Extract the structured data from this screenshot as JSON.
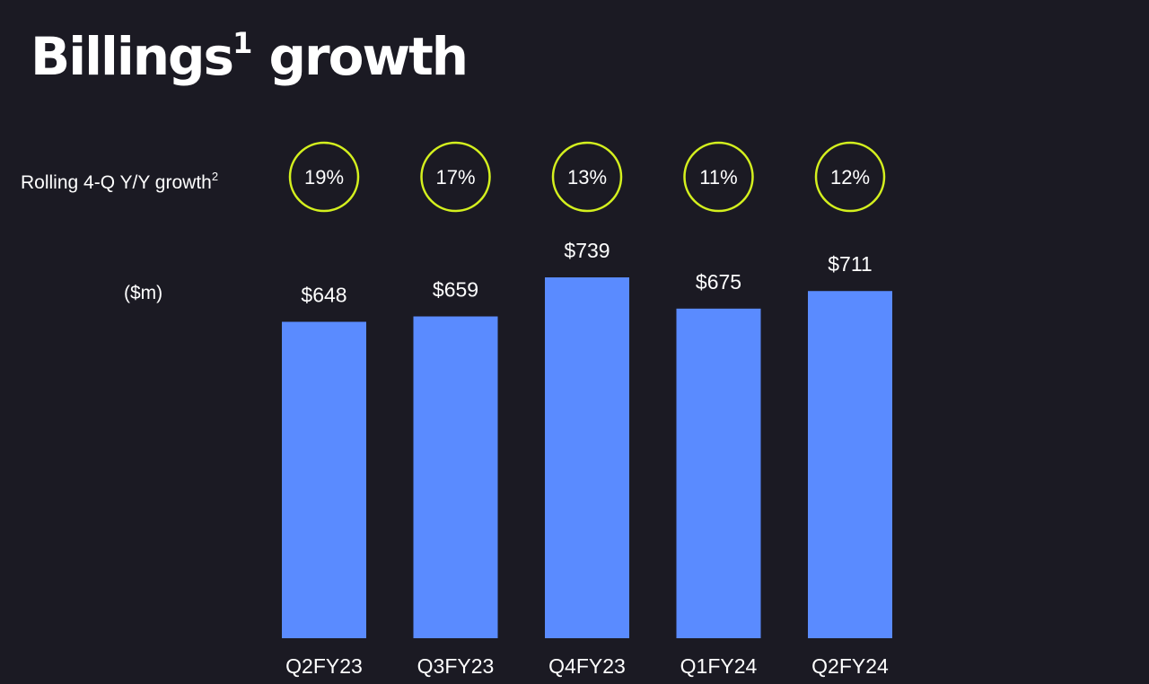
{
  "slide": {
    "title": "Billings",
    "title_superscript": "1",
    "title_rest": " growth",
    "growth_row_label": "Rolling 4-Q Y/Y growth",
    "growth_row_superscript": "2",
    "unit_label": "($m)"
  },
  "colors": {
    "background": "#1b1a23",
    "bar": "#5a8bff",
    "circle": "#d4f01e",
    "text": "#ffffff"
  },
  "chart_data": {
    "type": "bar",
    "title": "Billings1 growth",
    "xlabel": "",
    "ylabel": "($m)",
    "categories": [
      "Q2FY23",
      "Q3FY23",
      "Q4FY23",
      "Q1FY24",
      "Q2FY24"
    ],
    "values": [
      648,
      659,
      739,
      675,
      711
    ],
    "value_labels": [
      "$648",
      "$659",
      "$739",
      "$675",
      "$711"
    ],
    "growth_labels": [
      "19%",
      "17%",
      "13%",
      "11%",
      "12%"
    ],
    "ylim": [
      0,
      739
    ],
    "grid": false
  }
}
